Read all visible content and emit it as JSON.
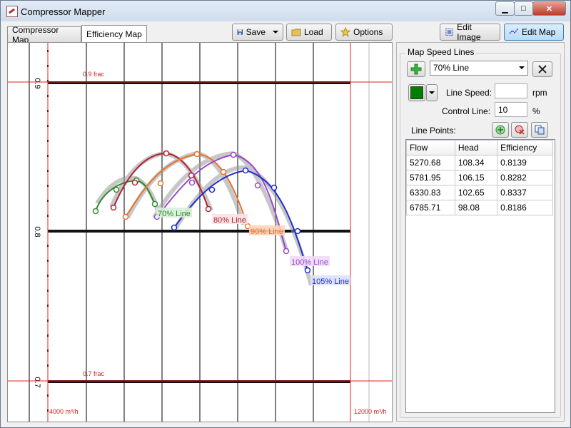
{
  "window": {
    "title": "Compressor Mapper",
    "min_icon": "minimize-icon",
    "max_icon": "maximize-icon",
    "close_icon": "close-icon",
    "min_glyph": "▁",
    "max_glyph": "□",
    "close_glyph": "✕"
  },
  "tabs": [
    {
      "label": "Compressor Map",
      "active": false
    },
    {
      "label": "Efficiency Map",
      "active": true
    }
  ],
  "toolbar": {
    "save_label": "Save",
    "load_label": "Load",
    "options_label": "Options",
    "edit_image_label": "Edit Image",
    "edit_map_label": "Edit Map",
    "edit_map_active": true
  },
  "map": {
    "top_frac_label": "0.9 frac",
    "bottom_frac_label": "0.7 frac",
    "x_min_label": "4000 m³/h",
    "x_max_label": "12000 m³/h",
    "left_tick_labels": [
      "0.9",
      "0.8",
      "0.7"
    ],
    "lines": [
      {
        "label": "70% Line",
        "color": "#2e8b2e"
      },
      {
        "label": "80% Line",
        "color": "#b22234"
      },
      {
        "label": "90% Line",
        "color": "#e8722a"
      },
      {
        "label": "100% Line",
        "color": "#9a47c9"
      },
      {
        "label": "105% Line",
        "color": "#1f2fd0"
      }
    ]
  },
  "side_panel": {
    "group_title": "Map Speed Lines",
    "selected_line": "70% Line",
    "line_color": "#008000",
    "line_speed_label": "Line Speed:",
    "line_speed_value": "",
    "line_speed_unit": "rpm",
    "control_line_label": "Control Line:",
    "control_line_value": "10",
    "control_line_unit": "%",
    "line_points_label": "Line Points:",
    "columns": [
      "Flow",
      "Head",
      "Efficiency"
    ],
    "rows": [
      [
        "5270.68",
        "108.34",
        "0.8139"
      ],
      [
        "5781.95",
        "106.15",
        "0.8282"
      ],
      [
        "6330.83",
        "102.65",
        "0.8337"
      ],
      [
        "6785.71",
        "98.08",
        "0.8186"
      ]
    ]
  }
}
